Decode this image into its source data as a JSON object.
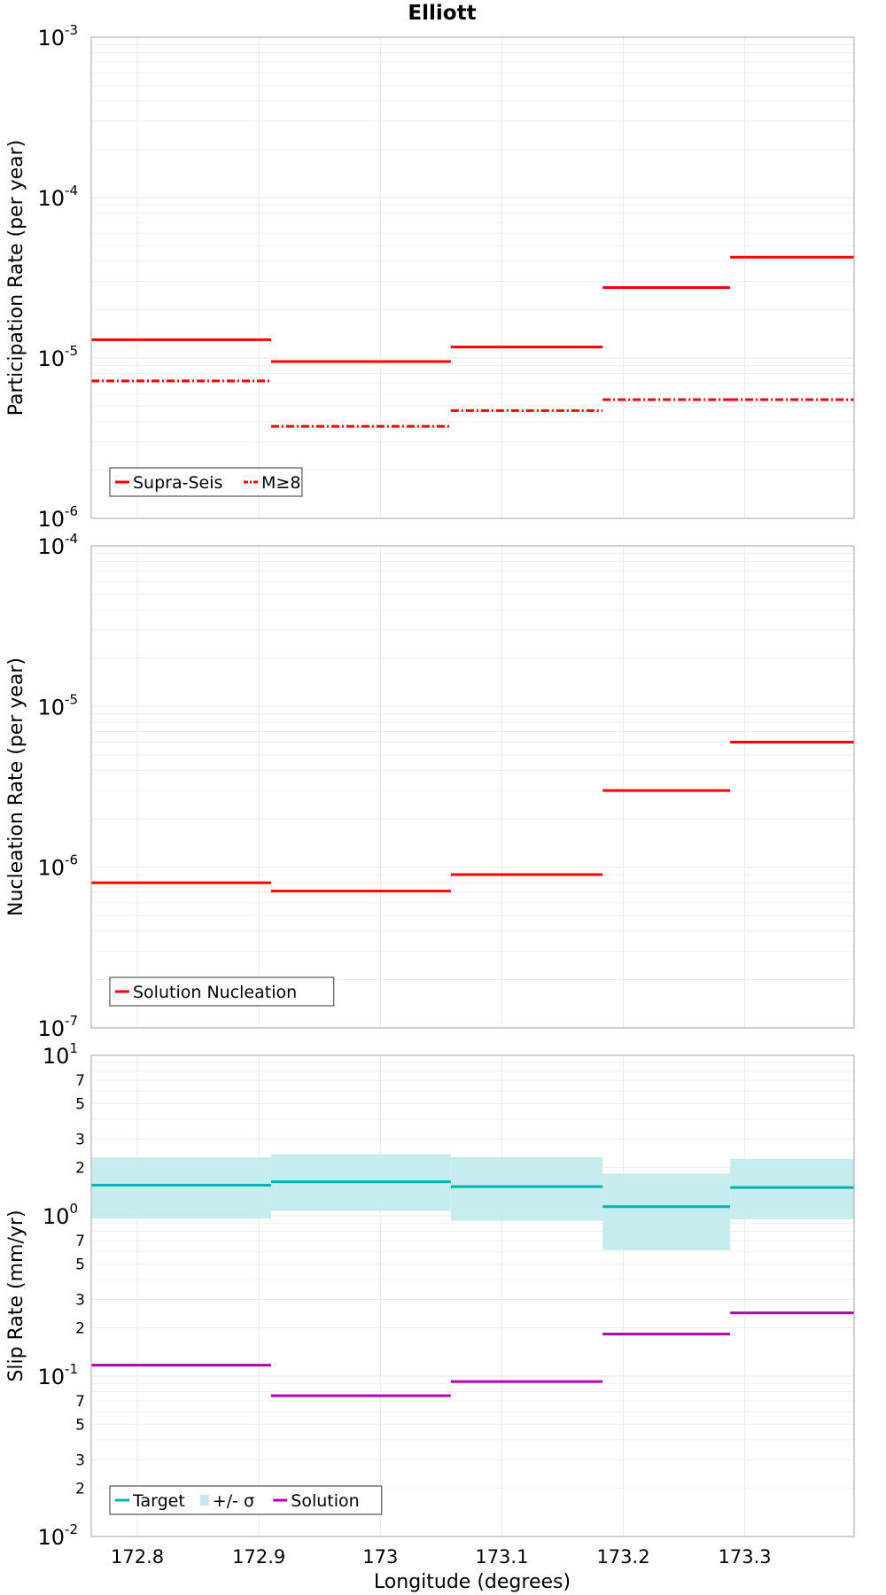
{
  "title": "Elliott",
  "xlabel": "Longitude (degrees)",
  "x_ticks": [
    "172.8",
    "172.9",
    "173",
    "173.1",
    "173.2",
    "173.3"
  ],
  "colors": {
    "red": "#ff0000",
    "teal": "#00b3b3",
    "band": "#c2ecec",
    "magenta": "#b300b3",
    "grid": "#ececec"
  },
  "chart_data": [
    {
      "type": "line",
      "panel": "participation",
      "title": "Elliott",
      "xlabel": "",
      "ylabel": "Participation Rate (per year)",
      "xlim": [
        172.762,
        173.39
      ],
      "ylim": [
        1e-06,
        0.001
      ],
      "yscale": "log",
      "y_ticks": [
        "10-6",
        "10-5",
        "10-4",
        "10-3"
      ],
      "grid": true,
      "legend": "bottom-left",
      "x_edges": [
        172.762,
        172.91,
        173.058,
        173.183,
        173.288,
        173.39
      ],
      "series": [
        {
          "name": "Supra-Seis",
          "style": "solid",
          "color": "#ff0000",
          "values": [
            1.3e-05,
            9.5e-06,
            1.17e-05,
            2.75e-05,
            4.25e-05
          ]
        },
        {
          "name": "M≥8",
          "style": "dashdot",
          "color": "#ff0000",
          "values": [
            7.2e-06,
            3.75e-06,
            4.7e-06,
            5.5e-06,
            5.5e-06
          ]
        }
      ]
    },
    {
      "type": "line",
      "panel": "nucleation",
      "xlabel": "",
      "ylabel": "Nucleation Rate (per year)",
      "xlim": [
        172.762,
        173.39
      ],
      "ylim": [
        1e-07,
        0.0001
      ],
      "yscale": "log",
      "y_ticks": [
        "10-7",
        "10-6",
        "10-5",
        "10-4"
      ],
      "grid": true,
      "legend": "bottom-left",
      "x_edges": [
        172.762,
        172.91,
        173.058,
        173.183,
        173.288,
        173.39
      ],
      "series": [
        {
          "name": "Solution Nucleation",
          "style": "solid",
          "color": "#ff0000",
          "values": [
            8e-07,
            7.1e-07,
            9e-07,
            3e-06,
            6e-06
          ]
        }
      ]
    },
    {
      "type": "line",
      "panel": "slip",
      "xlabel": "Longitude (degrees)",
      "ylabel": "Slip Rate (mm/yr)",
      "xlim": [
        172.762,
        173.39
      ],
      "ylim": [
        0.01,
        10
      ],
      "yscale": "log",
      "y_ticks": [
        "10-2",
        "10-1",
        "100",
        "101"
      ],
      "y_minor_labels": [
        "2",
        "3",
        "5",
        "7"
      ],
      "grid": true,
      "legend": "bottom-left",
      "x_edges": [
        172.762,
        172.91,
        173.058,
        173.183,
        173.288,
        173.39
      ],
      "series": [
        {
          "name": "Target",
          "style": "solid",
          "color": "#00b3b3",
          "values": [
            1.55,
            1.63,
            1.52,
            1.14,
            1.5
          ]
        },
        {
          "name": "+/- σ",
          "style": "band",
          "color": "#c2ecec",
          "lower": [
            0.96,
            1.07,
            0.93,
            0.61,
            0.95
          ],
          "upper": [
            2.31,
            2.42,
            2.32,
            1.83,
            2.26
          ]
        },
        {
          "name": "Solution",
          "style": "solid",
          "color": "#b300b3",
          "values": [
            0.117,
            0.0755,
            0.0925,
            0.183,
            0.248
          ]
        }
      ]
    }
  ]
}
